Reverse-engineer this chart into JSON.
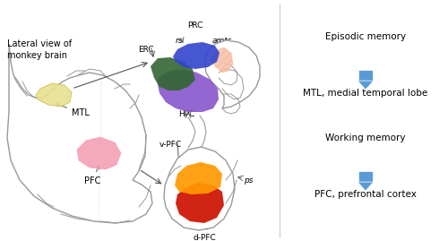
{
  "bg_color": "#ffffff",
  "text_color": "#000000",
  "arrow_color": "#5b9bd5",
  "line_color": "#aaaaaa",
  "right_panel": {
    "pfc_label": "PFC, prefrontal cortex",
    "pfc_sublabel": "Working memory",
    "mtl_label": "MTL, medial temporal lobe",
    "mtl_sublabel": "Episodic memory"
  },
  "brain_labels": {
    "lateral": "Lateral view of\nmonkey brain",
    "pfc": "PFC",
    "mtl": "MTL"
  },
  "pfc_detail_labels": {
    "dpfc": "d-PFC",
    "vpfc": "v-PFC",
    "ps": "ps"
  },
  "mtl_detail_labels": {
    "hpc": "HPC",
    "erc": "ERC",
    "prc": "PRC",
    "rs": "rs",
    "amts": "amts"
  },
  "colors": {
    "pfc_red": "#cc1100",
    "pfc_orange": "#ff9900",
    "brain_pink": "#f4a0b5",
    "brain_yellow": "#e8e090",
    "mtl_purple": "#8855cc",
    "mtl_green": "#336633",
    "mtl_blue": "#3344cc",
    "mtl_peach": "#f5bba0",
    "outline": "#999999"
  }
}
